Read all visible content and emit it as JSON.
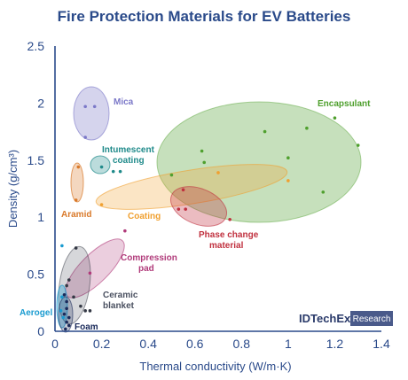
{
  "chart_data": {
    "type": "scatter",
    "title": "Fire Protection Materials for EV Batteries",
    "xlabel": "Thermal conductivity (W/m·K)",
    "ylabel": "Density (g/cm³)",
    "xlim": [
      0,
      1.4
    ],
    "ylim": [
      0,
      2.5
    ],
    "xticks": [
      "0",
      "0.2",
      "0.4",
      "0.6",
      "0.8",
      "1",
      "1.2",
      "1.4"
    ],
    "yticks": [
      "0",
      "0.5",
      "1",
      "1.5",
      "2",
      "2.5"
    ],
    "grid": false,
    "legend": "labels placed beside each material region",
    "series": [
      {
        "name": "Mica",
        "color": "#7b78c8",
        "points": [
          [
            0.13,
            1.97
          ],
          [
            0.17,
            1.97
          ],
          [
            0.13,
            1.7
          ]
        ]
      },
      {
        "name": "Intumescent coating",
        "color": "#1f8a8a",
        "points": [
          [
            0.2,
            1.44
          ],
          [
            0.25,
            1.4
          ],
          [
            0.28,
            1.4
          ]
        ]
      },
      {
        "name": "Encapsulant",
        "color": "#4fa02e",
        "points": [
          [
            0.5,
            1.37
          ],
          [
            0.63,
            1.58
          ],
          [
            0.64,
            1.48
          ],
          [
            0.9,
            1.75
          ],
          [
            1.0,
            1.52
          ],
          [
            1.08,
            1.78
          ],
          [
            1.2,
            1.87
          ],
          [
            1.3,
            1.63
          ],
          [
            1.15,
            1.22
          ]
        ]
      },
      {
        "name": "Aramid",
        "color": "#d9792a",
        "points": [
          [
            0.1,
            1.44
          ],
          [
            0.09,
            1.15
          ]
        ]
      },
      {
        "name": "Coating",
        "color": "#f0a030",
        "points": [
          [
            0.7,
            1.39
          ],
          [
            1.0,
            1.32
          ],
          [
            0.2,
            1.11
          ]
        ]
      },
      {
        "name": "Phase change material",
        "color": "#c0303e",
        "points": [
          [
            0.55,
            1.24
          ],
          [
            0.53,
            1.07
          ],
          [
            0.56,
            1.07
          ],
          [
            0.75,
            0.98
          ]
        ]
      },
      {
        "name": "Compression pad",
        "color": "#b03a7a",
        "points": [
          [
            0.3,
            0.88
          ],
          [
            0.15,
            0.51
          ]
        ]
      },
      {
        "name": "Ceramic blanket",
        "color": "#333844",
        "points": [
          [
            0.09,
            0.73
          ],
          [
            0.06,
            0.45
          ],
          [
            0.05,
            0.4
          ],
          [
            0.08,
            0.3
          ],
          [
            0.11,
            0.22
          ],
          [
            0.13,
            0.18
          ],
          [
            0.15,
            0.18
          ]
        ]
      },
      {
        "name": "Aerogel",
        "color": "#1a9bd0",
        "points": [
          [
            0.03,
            0.75
          ],
          [
            0.03,
            0.3
          ],
          [
            0.025,
            0.18
          ],
          [
            0.035,
            0.12
          ]
        ]
      },
      {
        "name": "Foam",
        "color": "#1a2a5a",
        "points": [
          [
            0.04,
            0.32
          ],
          [
            0.05,
            0.26
          ],
          [
            0.05,
            0.2
          ],
          [
            0.04,
            0.15
          ],
          [
            0.06,
            0.12
          ],
          [
            0.05,
            0.08
          ],
          [
            0.06,
            0.05
          ],
          [
            0.045,
            0.02
          ]
        ]
      }
    ]
  },
  "logo": {
    "left": "IDTechEx",
    "right": "Research"
  }
}
